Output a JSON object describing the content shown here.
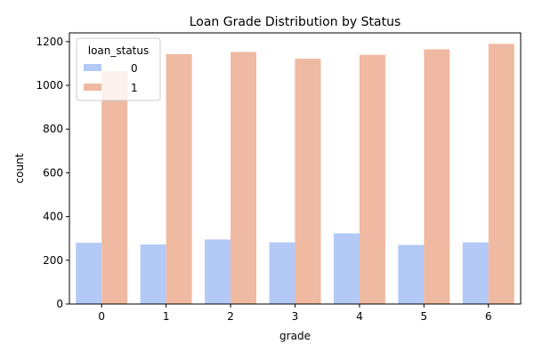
{
  "chart_data": {
    "type": "bar",
    "title": "Loan Grade Distribution by Status",
    "xlabel": "grade",
    "ylabel": "count",
    "categories": [
      "0",
      "1",
      "2",
      "3",
      "4",
      "5",
      "6"
    ],
    "series": [
      {
        "name": "0",
        "values": [
          280,
          272,
          295,
          282,
          323,
          270,
          282
        ],
        "color": "#b3c9f6"
      },
      {
        "name": "1",
        "values": [
          1065,
          1143,
          1153,
          1122,
          1140,
          1165,
          1190
        ],
        "color": "#efbaa1"
      }
    ],
    "ylim": [
      0,
      1240
    ],
    "yticks": [
      0,
      200,
      400,
      600,
      800,
      1000,
      1200
    ],
    "grid": false,
    "legend": {
      "title": "loan_status",
      "placement": "top-left"
    }
  }
}
